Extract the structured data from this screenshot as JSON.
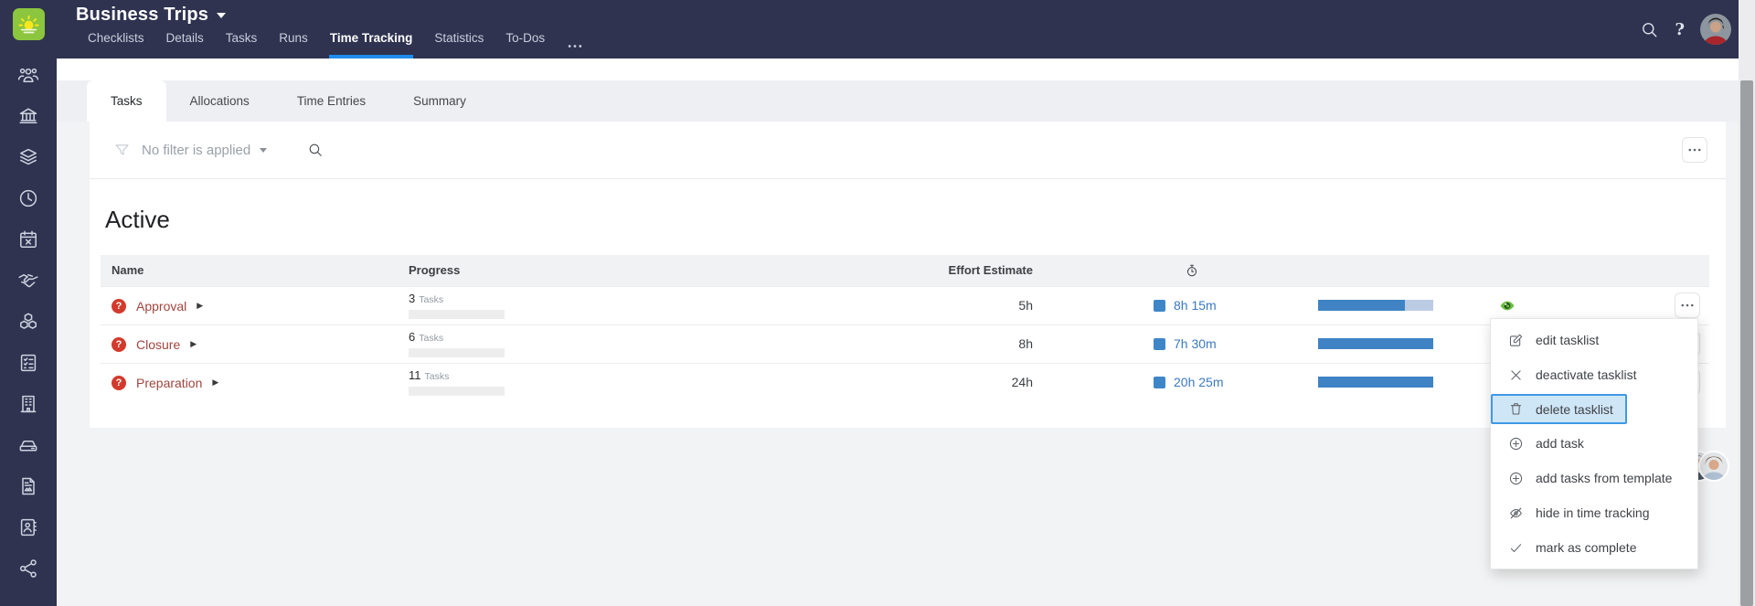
{
  "top_nav": {
    "title": "Business Trips",
    "help_label": "?",
    "items": [
      {
        "label": "Checklists",
        "active": false
      },
      {
        "label": "Details",
        "active": false
      },
      {
        "label": "Tasks",
        "active": false
      },
      {
        "label": "Runs",
        "active": false
      },
      {
        "label": "Time Tracking",
        "active": true
      },
      {
        "label": "Statistics",
        "active": false
      },
      {
        "label": "To-Dos",
        "active": false
      }
    ]
  },
  "sidebar": {
    "items": [
      {
        "icon": "people"
      },
      {
        "icon": "bank"
      },
      {
        "icon": "layers"
      },
      {
        "icon": "clock"
      },
      {
        "icon": "calendar-x"
      },
      {
        "icon": "handshake"
      },
      {
        "icon": "cubes"
      },
      {
        "icon": "checklist"
      },
      {
        "icon": "building"
      },
      {
        "icon": "car"
      },
      {
        "icon": "report"
      },
      {
        "icon": "address-book"
      },
      {
        "icon": "share"
      }
    ]
  },
  "content_tabs": [
    {
      "label": "Tasks",
      "active": true
    },
    {
      "label": "Allocations",
      "active": false
    },
    {
      "label": "Time Entries",
      "active": false
    },
    {
      "label": "Summary",
      "active": false
    }
  ],
  "filter_bar": {
    "label": "No filter is applied"
  },
  "section_title": "Active",
  "table": {
    "headers": {
      "name": "Name",
      "progress": "Progress",
      "effort": "Effort Estimate"
    },
    "tasks_word": "Tasks",
    "badge_symbol": "?",
    "expand_glyph": "▶",
    "rows": [
      {
        "name": "Approval",
        "tasks": "3",
        "tasks_pct": 0,
        "effort": "5h",
        "tracked": "8h 15m",
        "time_pct": 75
      },
      {
        "name": "Closure",
        "tasks": "6",
        "tasks_pct": 0,
        "effort": "8h",
        "tracked": "7h 30m",
        "time_pct": 100
      },
      {
        "name": "Preparation",
        "tasks": "11",
        "tasks_pct": 0,
        "effort": "24h",
        "tracked": "20h 25m",
        "time_pct": 100
      }
    ]
  },
  "context_menu": {
    "items": [
      {
        "icon": "edit",
        "label": "edit tasklist",
        "highlighted": false
      },
      {
        "icon": "x",
        "label": "deactivate tasklist",
        "highlighted": false
      },
      {
        "icon": "trash",
        "label": "delete tasklist",
        "highlighted": true
      },
      {
        "icon": "circle-plus",
        "label": "add task",
        "highlighted": false
      },
      {
        "icon": "circle-plus",
        "label": "add tasks from template",
        "highlighted": false
      },
      {
        "icon": "eye-off",
        "label": "hide in time tracking",
        "highlighted": false
      },
      {
        "icon": "check",
        "label": "mark as complete",
        "highlighted": false
      }
    ]
  },
  "colors": {
    "header_navy": "#2f3350",
    "accent_blue": "#1f8ceb",
    "link_blue": "#3b79c2",
    "bar_blue": "#3f83c4",
    "bar_blue_light": "#bccbe4",
    "badge_red": "#d33a2c",
    "eye_green": "#6abf45",
    "highlight_bg": "#cfe6f7",
    "highlight_border": "#3f99e6",
    "name_red": "#a1453e"
  }
}
